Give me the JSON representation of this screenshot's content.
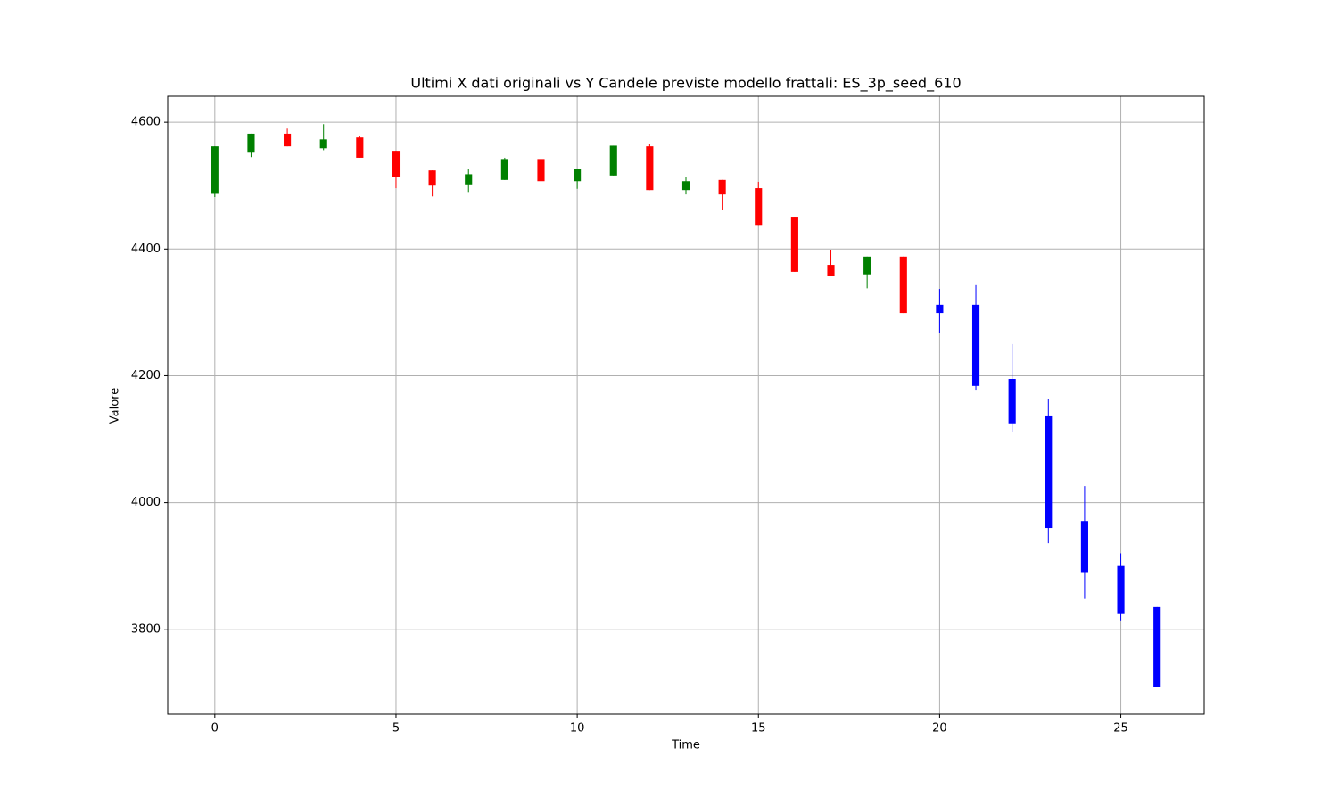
{
  "chart_data": {
    "type": "candlestick",
    "title": "Ultimi X dati originali vs Y Candele previste modello frattali: ES_3p_seed_610",
    "x_label": "Time",
    "y_label": "Valore",
    "x": [
      0,
      1,
      2,
      3,
      4,
      5,
      6,
      7,
      8,
      9,
      10,
      11,
      12,
      13,
      14,
      15,
      16,
      17,
      18,
      19,
      20,
      21,
      22,
      23,
      24,
      25,
      26
    ],
    "open": [
      4487,
      4552,
      4582,
      4559,
      4576,
      4555,
      4524,
      4502,
      4509,
      4542,
      4507,
      4516,
      4562,
      4493,
      4509,
      4496,
      4451,
      4375,
      4360,
      4388,
      4312,
      4312,
      4195,
      4136,
      3971,
      3900,
      3835
    ],
    "high": [
      4562,
      4582,
      4590,
      4597,
      4579,
      4555,
      4524,
      4527,
      4544,
      4542,
      4527,
      4563,
      4566,
      4514,
      4509,
      4506,
      4451,
      4399,
      4388,
      4388,
      4337,
      4343,
      4250,
      4164,
      4026,
      3920,
      3835
    ],
    "low": [
      4482,
      4545,
      4562,
      4556,
      4544,
      4496,
      4483,
      4490,
      4509,
      4507,
      4495,
      4516,
      4493,
      4486,
      4462,
      4438,
      4364,
      4357,
      4338,
      4299,
      4268,
      4178,
      4112,
      3936,
      3848,
      3814,
      3709
    ],
    "close": [
      4562,
      4582,
      4562,
      4573,
      4544,
      4513,
      4500,
      4518,
      4542,
      4507,
      4527,
      4563,
      4493,
      4507,
      4486,
      4438,
      4364,
      4357,
      4388,
      4299,
      4299,
      4184,
      4125,
      3960,
      3889,
      3824,
      3709
    ],
    "colors": [
      "green",
      "green",
      "red",
      "green",
      "red",
      "red",
      "red",
      "green",
      "green",
      "red",
      "green",
      "green",
      "red",
      "green",
      "red",
      "red",
      "red",
      "red",
      "green",
      "red",
      "blue",
      "blue",
      "blue",
      "blue",
      "blue",
      "blue",
      "blue"
    ],
    "xlim": [
      -1.3,
      27.3
    ],
    "ylim": [
      3666,
      4641
    ],
    "xticks": [
      0,
      5,
      10,
      15,
      20,
      25
    ],
    "yticks": [
      3800,
      4000,
      4200,
      4400,
      4600
    ],
    "grid": true
  }
}
